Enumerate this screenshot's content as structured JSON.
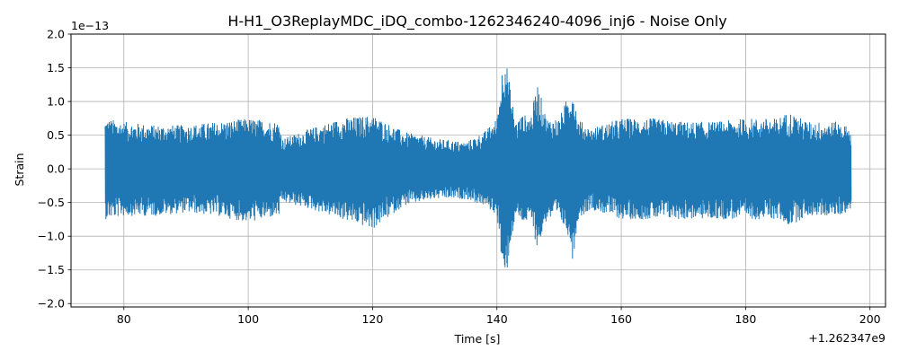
{
  "chart_data": {
    "type": "line",
    "title": "H-H1_O3ReplayMDC_iDQ_combo-1262346240-4096_inj6 - Noise Only",
    "xlabel": "Time [s]",
    "ylabel": "Strain",
    "x_offset_label": "+1.262347e9",
    "y_scale_label": "1e−13",
    "xlim": [
      71.5,
      202.5
    ],
    "ylim": [
      -2.05,
      2.0
    ],
    "x_ticks": [
      80,
      100,
      120,
      140,
      160,
      180,
      200
    ],
    "x_tick_labels": [
      "80",
      "100",
      "120",
      "140",
      "160",
      "180",
      "200"
    ],
    "y_ticks": [
      -2.0,
      -1.5,
      -1.0,
      -0.5,
      0.0,
      0.5,
      1.0,
      1.5,
      2.0
    ],
    "y_tick_labels": [
      "−2.0",
      "−1.5",
      "−1.0",
      "−0.5",
      "0.0",
      "0.5",
      "1.0",
      "1.5",
      "2.0"
    ],
    "grid": true,
    "color": "#1f77b4",
    "series": [
      {
        "x": [
          77,
          80,
          85,
          90,
          95,
          100,
          105,
          105.5,
          110,
          115,
          120,
          125,
          130,
          135,
          138,
          140,
          141.2,
          142,
          143,
          144,
          145.5,
          146.5,
          148,
          150,
          151.5,
          152.2,
          153,
          155,
          160,
          165,
          170,
          175,
          180,
          185,
          187,
          190,
          195,
          197
        ],
        "upper": [
          0.75,
          0.7,
          0.65,
          0.65,
          0.7,
          0.75,
          0.7,
          0.45,
          0.6,
          0.75,
          0.8,
          0.55,
          0.45,
          0.4,
          0.55,
          0.75,
          1.82,
          1.3,
          0.7,
          0.8,
          0.8,
          1.28,
          0.75,
          0.75,
          1.1,
          1.25,
          0.75,
          0.6,
          0.75,
          0.75,
          0.7,
          0.7,
          0.75,
          0.75,
          0.85,
          0.7,
          0.7,
          0.6
        ],
        "lower": [
          -0.75,
          -0.7,
          -0.7,
          -0.65,
          -0.7,
          -0.8,
          -0.7,
          -0.5,
          -0.6,
          -0.75,
          -0.9,
          -0.55,
          -0.45,
          -0.45,
          -0.55,
          -0.7,
          -1.85,
          -1.2,
          -0.7,
          -0.8,
          -0.8,
          -1.2,
          -0.75,
          -0.75,
          -1.0,
          -1.38,
          -0.75,
          -0.6,
          -0.75,
          -0.75,
          -0.75,
          -0.75,
          -0.75,
          -0.75,
          -0.85,
          -0.7,
          -0.7,
          -0.6
        ]
      }
    ]
  }
}
